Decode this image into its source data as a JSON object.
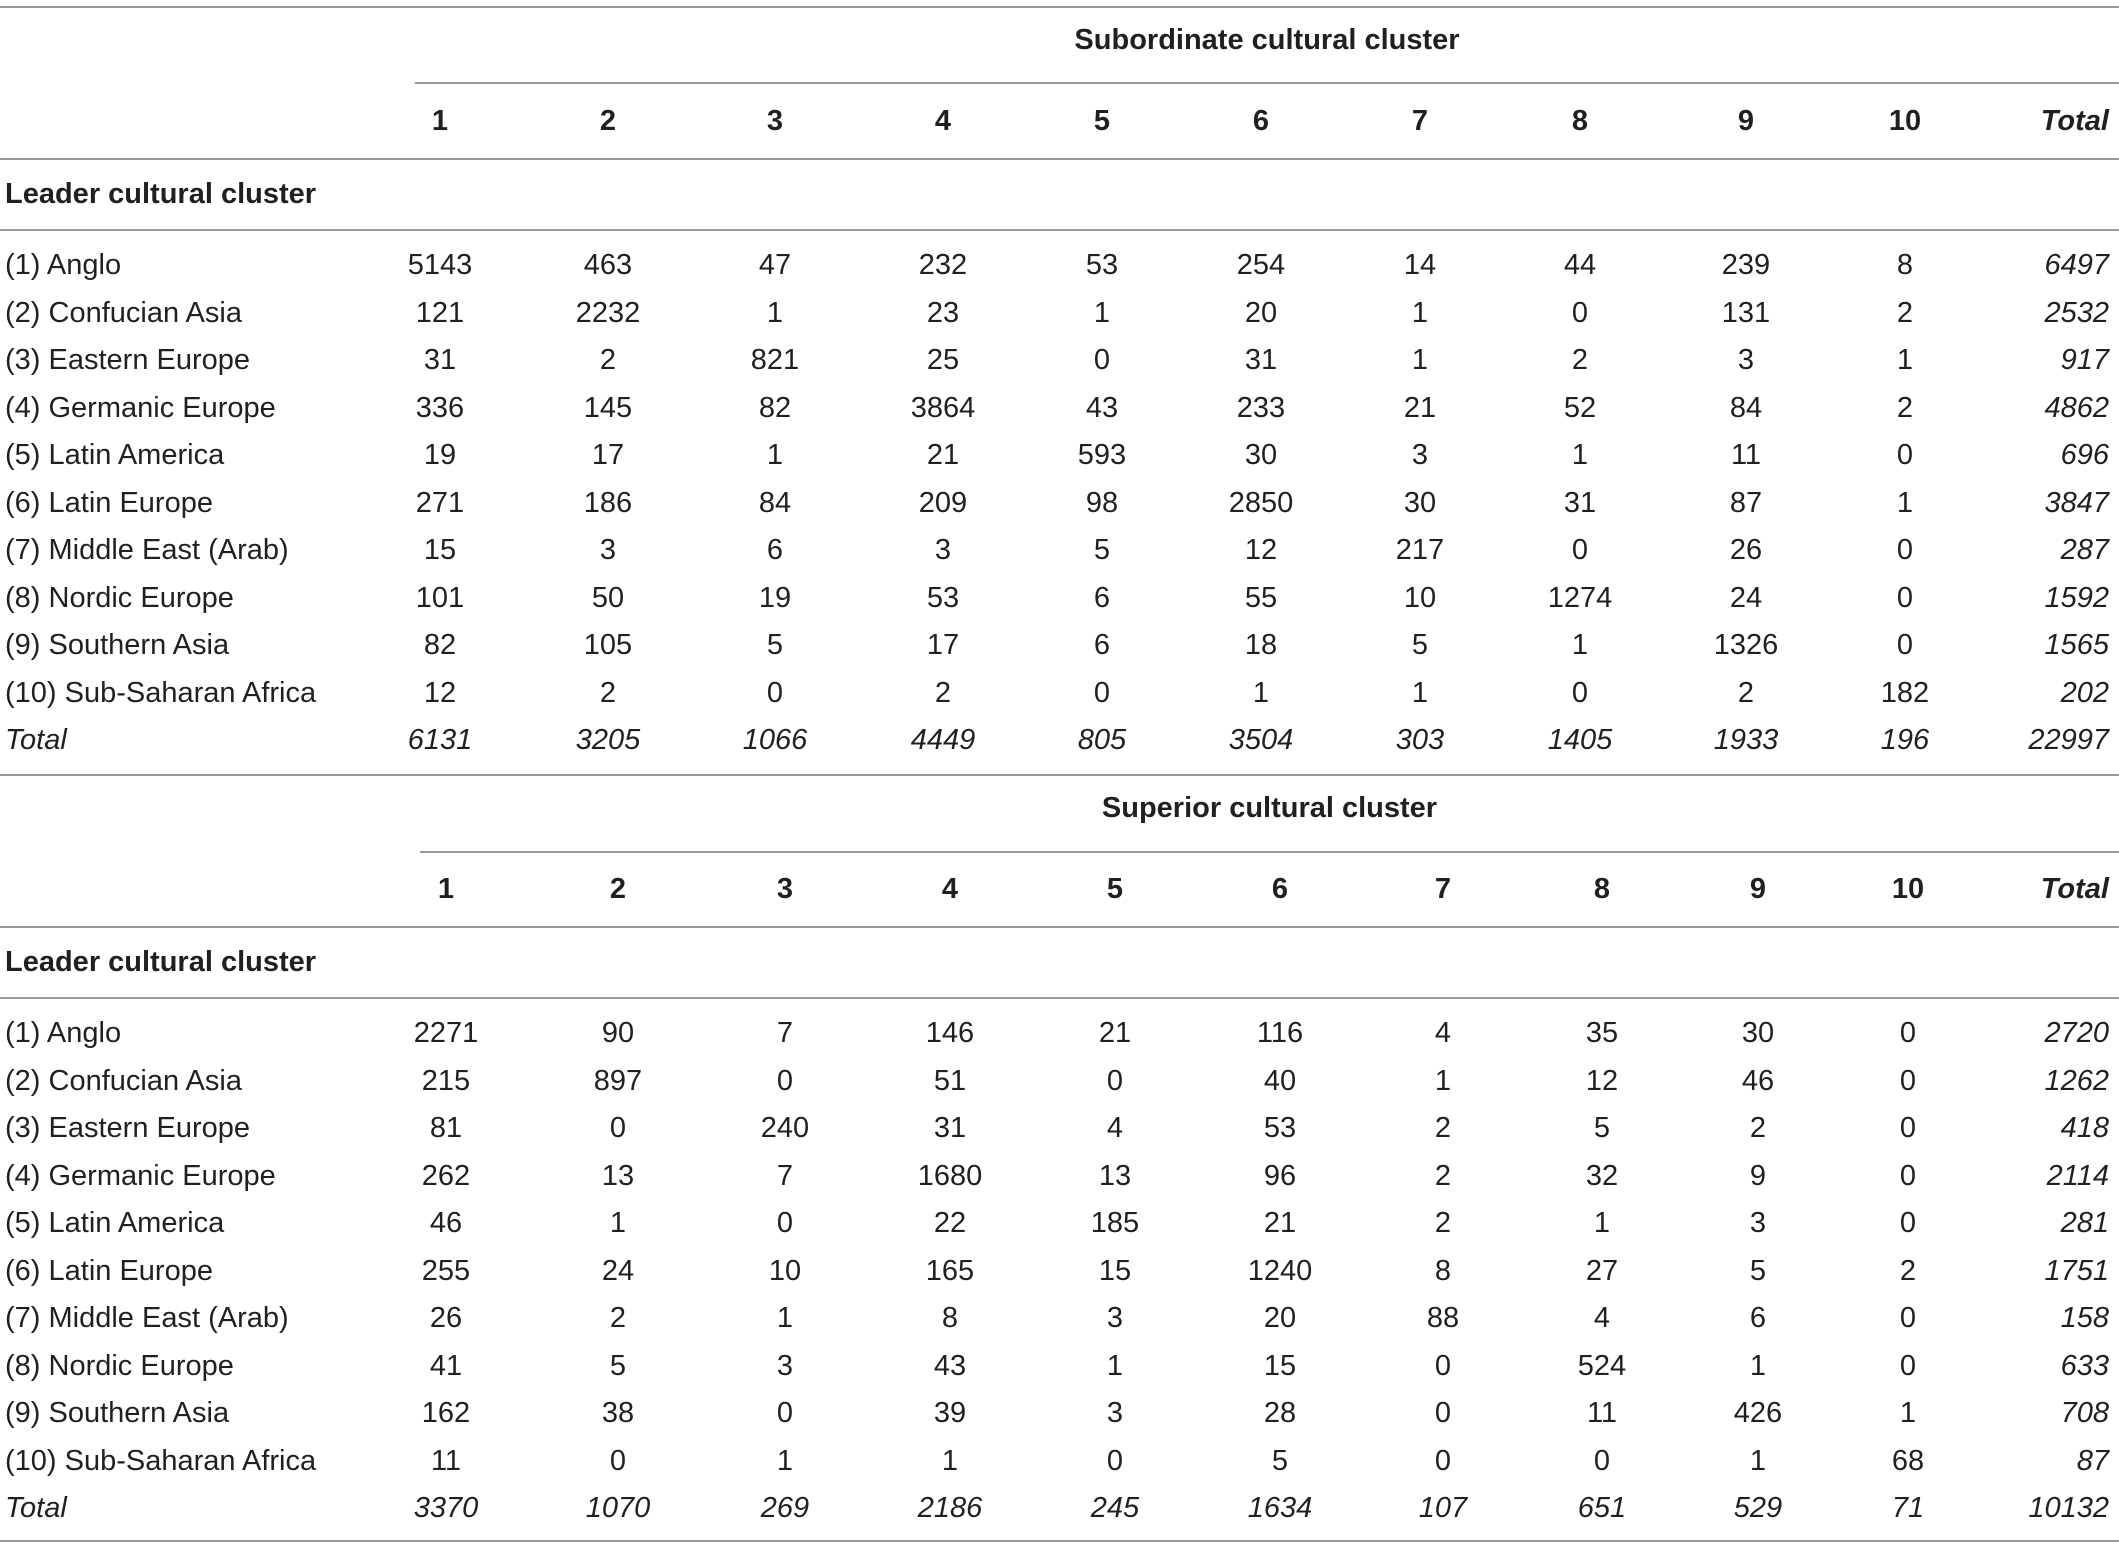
{
  "tables": [
    {
      "group_header": "Subordinate cultural cluster",
      "row_group_label": "Leader cultural cluster",
      "columns": [
        "1",
        "2",
        "3",
        "4",
        "5",
        "6",
        "7",
        "8",
        "9",
        "10",
        "Total"
      ],
      "rows": [
        {
          "label": "(1) Anglo",
          "values": [
            "5143",
            "463",
            "47",
            "232",
            "53",
            "254",
            "14",
            "44",
            "239",
            "8"
          ],
          "total": "6497"
        },
        {
          "label": "(2) Confucian Asia",
          "values": [
            "121",
            "2232",
            "1",
            "23",
            "1",
            "20",
            "1",
            "0",
            "131",
            "2"
          ],
          "total": "2532"
        },
        {
          "label": "(3) Eastern Europe",
          "values": [
            "31",
            "2",
            "821",
            "25",
            "0",
            "31",
            "1",
            "2",
            "3",
            "1"
          ],
          "total": "917"
        },
        {
          "label": "(4) Germanic Europe",
          "values": [
            "336",
            "145",
            "82",
            "3864",
            "43",
            "233",
            "21",
            "52",
            "84",
            "2"
          ],
          "total": "4862"
        },
        {
          "label": "(5) Latin America",
          "values": [
            "19",
            "17",
            "1",
            "21",
            "593",
            "30",
            "3",
            "1",
            "11",
            "0"
          ],
          "total": "696"
        },
        {
          "label": "(6) Latin Europe",
          "values": [
            "271",
            "186",
            "84",
            "209",
            "98",
            "2850",
            "30",
            "31",
            "87",
            "1"
          ],
          "total": "3847"
        },
        {
          "label": "(7) Middle East (Arab)",
          "values": [
            "15",
            "3",
            "6",
            "3",
            "5",
            "12",
            "217",
            "0",
            "26",
            "0"
          ],
          "total": "287"
        },
        {
          "label": "(8) Nordic Europe",
          "values": [
            "101",
            "50",
            "19",
            "53",
            "6",
            "55",
            "10",
            "1274",
            "24",
            "0"
          ],
          "total": "1592"
        },
        {
          "label": "(9) Southern Asia",
          "values": [
            "82",
            "105",
            "5",
            "17",
            "6",
            "18",
            "5",
            "1",
            "1326",
            "0"
          ],
          "total": "1565"
        },
        {
          "label": "(10) Sub-Saharan Africa",
          "values": [
            "12",
            "2",
            "0",
            "2",
            "0",
            "1",
            "1",
            "0",
            "2",
            "182"
          ],
          "total": "202"
        }
      ],
      "total_row": {
        "label": "Total",
        "values": [
          "6131",
          "3205",
          "1066",
          "4449",
          "805",
          "3504",
          "303",
          "1405",
          "1933",
          "196"
        ],
        "total": "22997"
      }
    },
    {
      "group_header": "Superior cultural cluster",
      "row_group_label": "Leader cultural cluster",
      "columns": [
        "1",
        "2",
        "3",
        "4",
        "5",
        "6",
        "7",
        "8",
        "9",
        "10",
        "Total"
      ],
      "rows": [
        {
          "label": "(1) Anglo",
          "values": [
            "2271",
            "90",
            "7",
            "146",
            "21",
            "116",
            "4",
            "35",
            "30",
            "0"
          ],
          "total": "2720"
        },
        {
          "label": "(2) Confucian Asia",
          "values": [
            "215",
            "897",
            "0",
            "51",
            "0",
            "40",
            "1",
            "12",
            "46",
            "0"
          ],
          "total": "1262"
        },
        {
          "label": "(3) Eastern Europe",
          "values": [
            "81",
            "0",
            "240",
            "31",
            "4",
            "53",
            "2",
            "5",
            "2",
            "0"
          ],
          "total": "418"
        },
        {
          "label": "(4) Germanic Europe",
          "values": [
            "262",
            "13",
            "7",
            "1680",
            "13",
            "96",
            "2",
            "32",
            "9",
            "0"
          ],
          "total": "2114"
        },
        {
          "label": "(5) Latin America",
          "values": [
            "46",
            "1",
            "0",
            "22",
            "185",
            "21",
            "2",
            "1",
            "3",
            "0"
          ],
          "total": "281"
        },
        {
          "label": "(6) Latin Europe",
          "values": [
            "255",
            "24",
            "10",
            "165",
            "15",
            "1240",
            "8",
            "27",
            "5",
            "2"
          ],
          "total": "1751"
        },
        {
          "label": "(7) Middle East (Arab)",
          "values": [
            "26",
            "2",
            "1",
            "8",
            "3",
            "20",
            "88",
            "4",
            "6",
            "0"
          ],
          "total": "158"
        },
        {
          "label": "(8) Nordic Europe",
          "values": [
            "41",
            "5",
            "3",
            "43",
            "1",
            "15",
            "0",
            "524",
            "1",
            "0"
          ],
          "total": "633"
        },
        {
          "label": "(9) Southern Asia",
          "values": [
            "162",
            "38",
            "0",
            "39",
            "3",
            "28",
            "0",
            "11",
            "426",
            "1"
          ],
          "total": "708"
        },
        {
          "label": "(10) Sub-Saharan Africa",
          "values": [
            "11",
            "0",
            "1",
            "1",
            "0",
            "5",
            "0",
            "0",
            "1",
            "68"
          ],
          "total": "87"
        }
      ],
      "total_row": {
        "label": "Total",
        "values": [
          "3370",
          "1070",
          "269",
          "2186",
          "245",
          "1634",
          "107",
          "651",
          "529",
          "71"
        ],
        "total": "10132"
      }
    }
  ]
}
